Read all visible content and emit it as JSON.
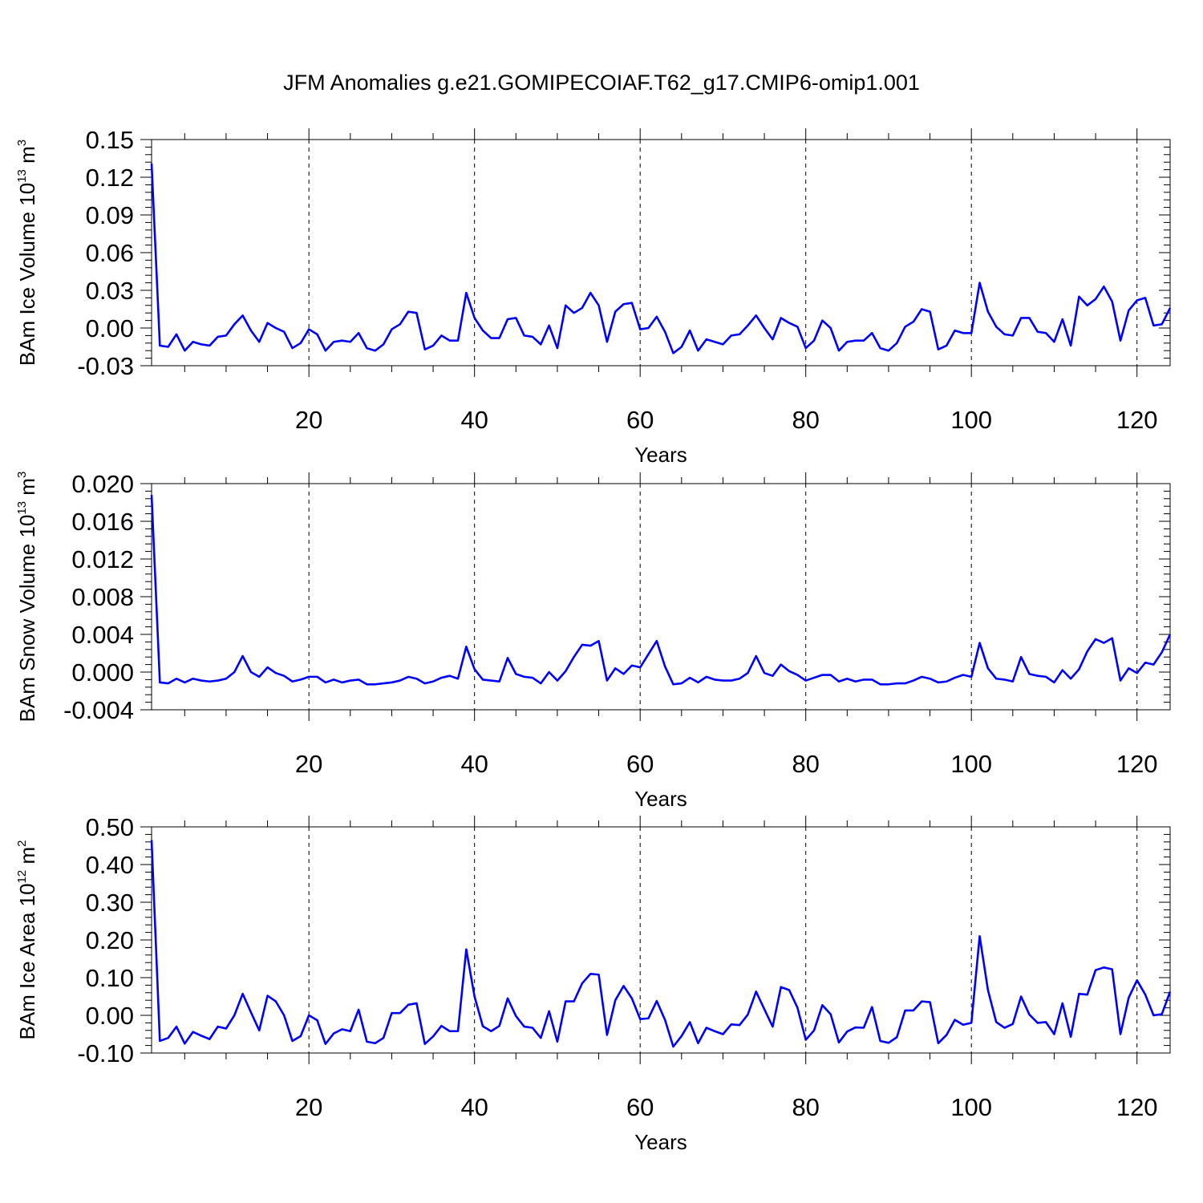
{
  "title": "JFM Anomalies g.e21.GOMIPECOIAF.T62_g17.CMIP6-omip1.001",
  "line_color": "#0000ff",
  "chart_data": [
    {
      "type": "line",
      "ylabel": "BAm Ice Volume 10",
      "ylabel_exp": "13",
      "ylabel_unit": " m",
      "ylabel_unit_exp": "3",
      "xlabel": "Years",
      "xlim": [
        1,
        124
      ],
      "ylim": [
        -0.03,
        0.15
      ],
      "yticks": [
        -0.03,
        0.0,
        0.03,
        0.06,
        0.09,
        0.12,
        0.15
      ],
      "ytick_labels": [
        "-0.03",
        "0.00",
        "0.03",
        "0.06",
        "0.09",
        "0.12",
        "0.15"
      ],
      "xticks": [
        20,
        40,
        60,
        80,
        100,
        120
      ],
      "xtick_labels": [
        "20",
        "40",
        "60",
        "80",
        "100",
        "120"
      ],
      "values": [
        0.131,
        -0.014,
        -0.015,
        -0.005,
        -0.018,
        -0.011,
        -0.013,
        -0.014,
        -0.007,
        -0.006,
        0.003,
        0.01,
        -0.002,
        -0.011,
        0.004,
        0.0,
        -0.003,
        -0.016,
        -0.012,
        -0.001,
        -0.005,
        -0.018,
        -0.011,
        -0.01,
        -0.011,
        -0.004,
        -0.016,
        -0.018,
        -0.013,
        -0.001,
        0.003,
        0.013,
        0.012,
        -0.017,
        -0.014,
        -0.006,
        -0.01,
        -0.01,
        0.028,
        0.008,
        -0.002,
        -0.008,
        -0.008,
        0.007,
        0.008,
        -0.006,
        -0.007,
        -0.013,
        0.002,
        -0.016,
        0.018,
        0.012,
        0.016,
        0.028,
        0.018,
        -0.011,
        0.013,
        0.019,
        0.02,
        -0.001,
        0.0,
        0.009,
        -0.003,
        -0.02,
        -0.015,
        -0.002,
        -0.018,
        -0.009,
        -0.011,
        -0.013,
        -0.006,
        -0.005,
        0.002,
        0.01,
        0.0,
        -0.009,
        0.008,
        0.004,
        0.001,
        -0.016,
        -0.01,
        0.006,
        0.0,
        -0.018,
        -0.011,
        -0.01,
        -0.01,
        -0.004,
        -0.016,
        -0.018,
        -0.012,
        0.001,
        0.005,
        0.015,
        0.013,
        -0.017,
        -0.014,
        -0.002,
        -0.004,
        -0.004,
        0.036,
        0.013,
        0.001,
        -0.005,
        -0.006,
        0.008,
        0.008,
        -0.003,
        -0.004,
        -0.011,
        0.007,
        -0.014,
        0.025,
        0.018,
        0.023,
        0.033,
        0.021,
        -0.01,
        0.014,
        0.022,
        0.024,
        0.002,
        0.003,
        0.016
      ]
    },
    {
      "type": "line",
      "ylabel": "BAm Snow Volume 10",
      "ylabel_exp": "13",
      "ylabel_unit": " m",
      "ylabel_unit_exp": "3",
      "xlabel": "Years",
      "xlim": [
        1,
        124
      ],
      "ylim": [
        -0.004,
        0.02
      ],
      "yticks": [
        -0.004,
        0.0,
        0.004,
        0.008,
        0.012,
        0.016,
        0.02
      ],
      "ytick_labels": [
        "-0.004",
        "0.000",
        "0.004",
        "0.008",
        "0.012",
        "0.016",
        "0.020"
      ],
      "xticks": [
        20,
        40,
        60,
        80,
        100,
        120
      ],
      "xtick_labels": [
        "20",
        "40",
        "60",
        "80",
        "100",
        "120"
      ],
      "values": [
        0.0188,
        -0.0011,
        -0.0012,
        -0.0007,
        -0.0011,
        -0.0007,
        -0.0009,
        -0.001,
        -0.0009,
        -0.0007,
        0.0,
        0.0017,
        0.0,
        -0.0005,
        0.0005,
        -0.0001,
        -0.0004,
        -0.001,
        -0.0008,
        -0.0005,
        -0.0005,
        -0.0011,
        -0.0008,
        -0.0011,
        -0.0009,
        -0.0008,
        -0.0013,
        -0.0013,
        -0.0012,
        -0.0011,
        -0.0009,
        -0.0005,
        -0.0007,
        -0.0012,
        -0.001,
        -0.0006,
        -0.0004,
        -0.0007,
        0.0027,
        0.0003,
        -0.0008,
        -0.0009,
        -0.001,
        0.0015,
        -0.0002,
        -0.0005,
        -0.0006,
        -0.0012,
        0.0,
        -0.0009,
        0.0001,
        0.0016,
        0.0029,
        0.0028,
        0.0033,
        -0.0009,
        0.0004,
        -0.0002,
        0.0007,
        0.0005,
        0.0019,
        0.0033,
        0.0006,
        -0.0013,
        -0.0012,
        -0.0006,
        -0.0011,
        -0.0005,
        -0.0008,
        -0.0009,
        -0.0009,
        -0.0007,
        -0.0001,
        0.0017,
        -0.0001,
        -0.0004,
        0.0008,
        0.0001,
        -0.0003,
        -0.0009,
        -0.0006,
        -0.0003,
        -0.0003,
        -0.001,
        -0.0007,
        -0.001,
        -0.0008,
        -0.0008,
        -0.0013,
        -0.0013,
        -0.0012,
        -0.0012,
        -0.0009,
        -0.0005,
        -0.0007,
        -0.0011,
        -0.001,
        -0.0006,
        -0.0003,
        -0.0005,
        0.0031,
        0.0004,
        -0.0007,
        -0.0008,
        -0.001,
        0.0016,
        -0.0002,
        -0.0004,
        -0.0005,
        -0.0011,
        0.0002,
        -0.0007,
        0.0003,
        0.0022,
        0.0035,
        0.0031,
        0.0036,
        -0.0009,
        0.0004,
        -0.0001,
        0.001,
        0.0008,
        0.0021,
        0.004
      ]
    },
    {
      "type": "line",
      "ylabel": "BAm Ice Area 10",
      "ylabel_exp": "12",
      "ylabel_unit": " m",
      "ylabel_unit_exp": "2",
      "xlabel": "Years",
      "xlim": [
        1,
        124
      ],
      "ylim": [
        -0.1,
        0.5
      ],
      "yticks": [
        -0.1,
        0.0,
        0.1,
        0.2,
        0.3,
        0.4,
        0.5
      ],
      "ytick_labels": [
        "-0.10",
        "0.00",
        "0.10",
        "0.20",
        "0.30",
        "0.40",
        "0.50"
      ],
      "xticks": [
        20,
        40,
        60,
        80,
        100,
        120
      ],
      "xtick_labels": [
        "20",
        "40",
        "60",
        "80",
        "100",
        "120"
      ],
      "values": [
        0.465,
        -0.068,
        -0.06,
        -0.03,
        -0.075,
        -0.044,
        -0.054,
        -0.063,
        -0.03,
        -0.035,
        0.0,
        0.057,
        0.008,
        -0.04,
        0.052,
        0.037,
        0.0,
        -0.068,
        -0.055,
        0.0,
        -0.013,
        -0.076,
        -0.048,
        -0.037,
        -0.042,
        0.015,
        -0.07,
        -0.074,
        -0.06,
        0.006,
        0.006,
        0.028,
        0.032,
        -0.076,
        -0.056,
        -0.028,
        -0.042,
        -0.042,
        0.175,
        0.05,
        -0.029,
        -0.042,
        -0.028,
        0.045,
        -0.002,
        -0.03,
        -0.033,
        -0.06,
        0.011,
        -0.07,
        0.037,
        0.037,
        0.085,
        0.11,
        0.108,
        -0.052,
        0.04,
        0.078,
        0.045,
        -0.01,
        -0.008,
        0.038,
        -0.012,
        -0.083,
        -0.055,
        -0.018,
        -0.074,
        -0.033,
        -0.042,
        -0.05,
        -0.024,
        -0.026,
        0.002,
        0.063,
        0.016,
        -0.03,
        0.075,
        0.067,
        0.02,
        -0.065,
        -0.04,
        0.027,
        0.003,
        -0.072,
        -0.043,
        -0.032,
        -0.033,
        0.022,
        -0.068,
        -0.073,
        -0.058,
        0.013,
        0.013,
        0.037,
        0.035,
        -0.074,
        -0.052,
        -0.012,
        -0.025,
        -0.02,
        0.21,
        0.067,
        -0.018,
        -0.033,
        -0.023,
        0.05,
        0.002,
        -0.02,
        -0.018,
        -0.05,
        0.032,
        -0.057,
        0.057,
        0.055,
        0.12,
        0.127,
        0.122,
        -0.05,
        0.047,
        0.093,
        0.055,
        0.0,
        0.003,
        0.063
      ]
    }
  ]
}
